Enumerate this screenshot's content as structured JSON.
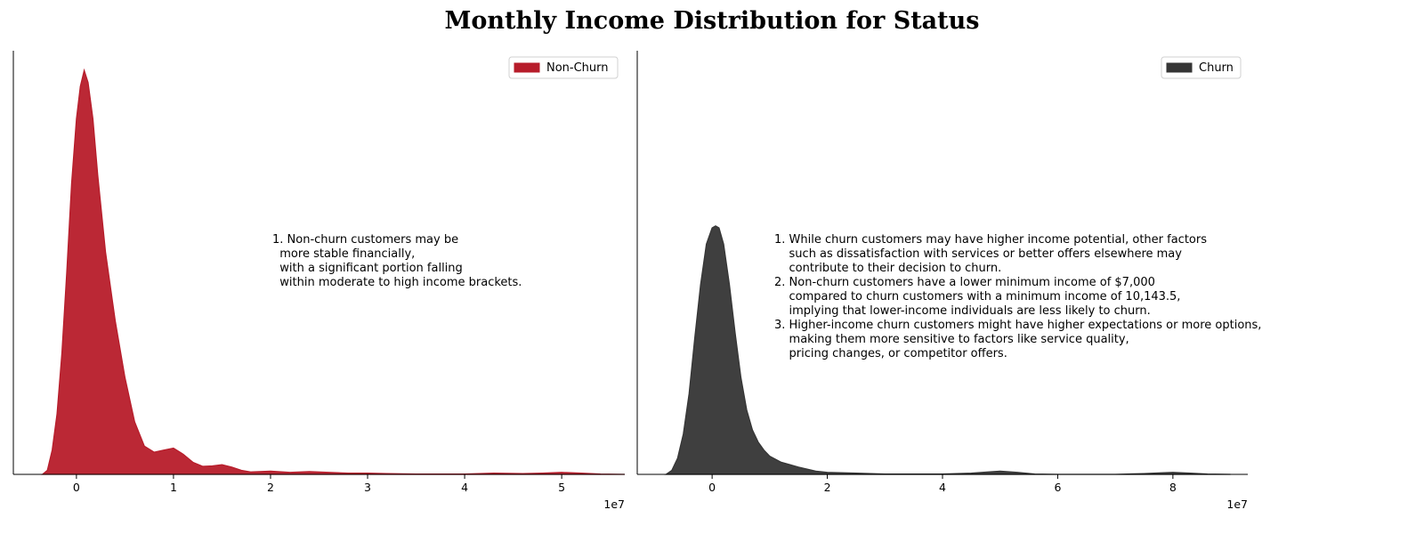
{
  "title": "Monthly Income Distribution for Status",
  "chart_data": [
    {
      "type": "area",
      "series": [
        {
          "name": "Non-Churn",
          "color": "#b71c2a"
        }
      ],
      "x_offset_label": "1e7",
      "x_ticks": [
        0,
        1,
        2,
        3,
        4,
        5
      ],
      "xlim": [
        -0.65,
        5.65
      ],
      "ylim": [
        0,
        1.0
      ],
      "x": [
        -0.35,
        -0.3,
        -0.25,
        -0.2,
        -0.15,
        -0.1,
        -0.05,
        0.0,
        0.04,
        0.08,
        0.12,
        0.17,
        0.22,
        0.3,
        0.4,
        0.5,
        0.6,
        0.7,
        0.8,
        0.9,
        1.0,
        1.1,
        1.2,
        1.3,
        1.4,
        1.5,
        1.6,
        1.7,
        1.8,
        2.0,
        2.2,
        2.4,
        2.6,
        2.8,
        3.0,
        3.2,
        3.5,
        3.8,
        4.0,
        4.3,
        4.6,
        4.8,
        5.0,
        5.2,
        5.4,
        5.65
      ],
      "y": [
        0.0,
        0.01,
        0.06,
        0.15,
        0.3,
        0.5,
        0.72,
        0.88,
        0.96,
        1.0,
        0.97,
        0.88,
        0.74,
        0.55,
        0.38,
        0.24,
        0.13,
        0.07,
        0.055,
        0.06,
        0.065,
        0.05,
        0.03,
        0.02,
        0.021,
        0.024,
        0.018,
        0.01,
        0.006,
        0.008,
        0.005,
        0.007,
        0.005,
        0.003,
        0.003,
        0.002,
        0.001,
        0.001,
        0.001,
        0.003,
        0.002,
        0.003,
        0.005,
        0.003,
        0.001,
        0.0
      ],
      "legend": "top-right",
      "annotation": [
        "1. Non-churn customers may be",
        "  more stable financially,",
        "  with a significant portion falling",
        "  within moderate to high income brackets."
      ]
    },
    {
      "type": "area",
      "series": [
        {
          "name": "Churn",
          "color": "#353535"
        }
      ],
      "x_offset_label": "1e7",
      "x_ticks": [
        0,
        2,
        4,
        6,
        8
      ],
      "xlim": [
        -1.3,
        9.3
      ],
      "ylim": [
        0,
        1.0
      ],
      "x": [
        -0.8,
        -0.7,
        -0.6,
        -0.5,
        -0.4,
        -0.3,
        -0.2,
        -0.1,
        0.0,
        0.06,
        0.12,
        0.2,
        0.3,
        0.4,
        0.5,
        0.6,
        0.7,
        0.8,
        0.9,
        1.0,
        1.2,
        1.5,
        1.8,
        2.0,
        2.5,
        3.0,
        3.5,
        4.0,
        4.5,
        4.8,
        5.0,
        5.3,
        5.6,
        6.0,
        6.5,
        7.0,
        7.5,
        7.8,
        8.0,
        8.3,
        8.6,
        9.0
      ],
      "y": [
        0.0,
        0.01,
        0.04,
        0.1,
        0.2,
        0.34,
        0.47,
        0.57,
        0.61,
        0.615,
        0.61,
        0.57,
        0.47,
        0.35,
        0.24,
        0.16,
        0.11,
        0.08,
        0.06,
        0.045,
        0.03,
        0.018,
        0.008,
        0.005,
        0.003,
        0.001,
        0.001,
        0.001,
        0.003,
        0.006,
        0.008,
        0.005,
        0.001,
        0.0,
        0.0,
        0.0,
        0.002,
        0.004,
        0.005,
        0.003,
        0.001,
        0.0
      ],
      "legend": "top-right",
      "annotation": [
        "1. While churn customers may have higher income potential, other factors",
        "    such as dissatisfaction with services or better offers elsewhere may",
        "    contribute to their decision to churn.",
        "2. Non-churn customers have a lower minimum income of $7,000",
        "    compared to churn customers with a minimum income of 10,143.5,",
        "    implying that lower-income individuals are less likely to churn.",
        "3. Higher-income churn customers might have higher expectations or more options,",
        "    making them more sensitive to factors like service quality,",
        "    pricing changes, or competitor offers."
      ]
    }
  ]
}
